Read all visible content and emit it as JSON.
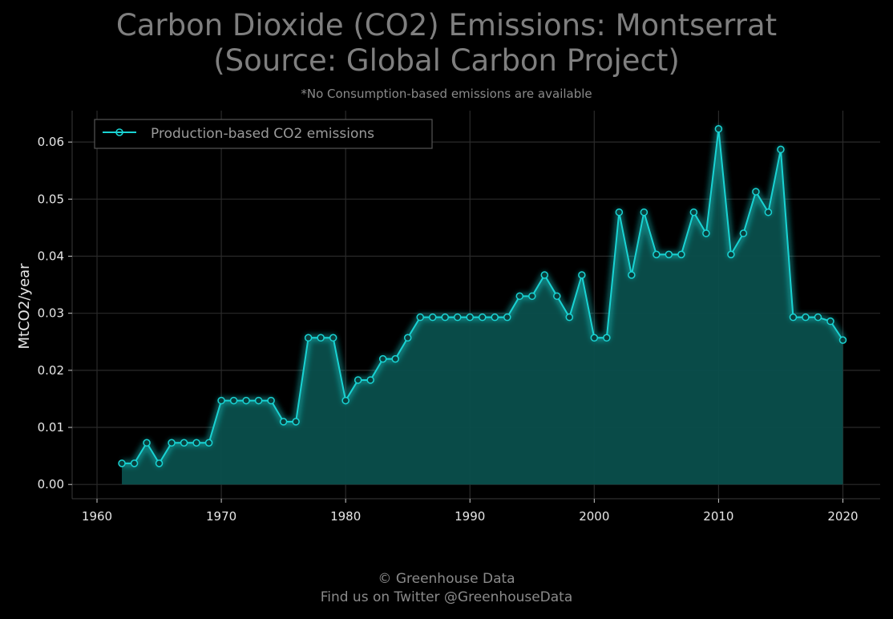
{
  "header": {
    "title_line1": "Carbon Dioxide (CO2) Emissions: Montserrat",
    "title_line2": "(Source: Global Carbon Project)",
    "subtitle": "*No Consumption-based emissions are available"
  },
  "footer": {
    "line1": "© Greenhouse Data",
    "line2": "Find us on Twitter @GreenhouseData"
  },
  "colors": {
    "background": "#000000",
    "line": "#19d3d3",
    "fill": "#0a4f4c",
    "grid": "#2a2a2a"
  },
  "chart_data": {
    "type": "area",
    "title": "Carbon Dioxide (CO2) Emissions: Montserrat (Source: Global Carbon Project)",
    "ylabel": "MtCO2/year",
    "xlabel": "",
    "xlim": [
      1958,
      2023
    ],
    "ylim": [
      -0.0025,
      0.0655
    ],
    "x_ticks": [
      1960,
      1970,
      1980,
      1990,
      2000,
      2010,
      2020
    ],
    "y_ticks": [
      0.0,
      0.01,
      0.02,
      0.03,
      0.04,
      0.05,
      0.06
    ],
    "y_tick_labels": [
      "0.00",
      "0.01",
      "0.02",
      "0.03",
      "0.04",
      "0.05",
      "0.06"
    ],
    "grid": true,
    "legend_position": "top-left",
    "series": [
      {
        "name": "Production-based CO2 emissions",
        "x": [
          1962,
          1963,
          1964,
          1965,
          1966,
          1967,
          1968,
          1969,
          1970,
          1971,
          1972,
          1973,
          1974,
          1975,
          1976,
          1977,
          1978,
          1979,
          1980,
          1981,
          1982,
          1983,
          1984,
          1985,
          1986,
          1987,
          1988,
          1989,
          1990,
          1991,
          1992,
          1993,
          1994,
          1995,
          1996,
          1997,
          1998,
          1999,
          2000,
          2001,
          2002,
          2003,
          2004,
          2005,
          2006,
          2007,
          2008,
          2009,
          2010,
          2011,
          2012,
          2013,
          2014,
          2015,
          2016,
          2017,
          2018,
          2019,
          2020
        ],
        "values": [
          0.0037,
          0.0037,
          0.0073,
          0.0037,
          0.0073,
          0.0073,
          0.0073,
          0.0073,
          0.0147,
          0.0147,
          0.0147,
          0.0147,
          0.0147,
          0.011,
          0.011,
          0.0257,
          0.0257,
          0.0257,
          0.0147,
          0.0183,
          0.0183,
          0.022,
          0.022,
          0.0257,
          0.0293,
          0.0293,
          0.0293,
          0.0293,
          0.0293,
          0.0293,
          0.0293,
          0.0293,
          0.033,
          0.033,
          0.0367,
          0.033,
          0.0293,
          0.0367,
          0.0257,
          0.0257,
          0.0477,
          0.0367,
          0.0477,
          0.0403,
          0.0403,
          0.0403,
          0.0477,
          0.044,
          0.0623,
          0.0403,
          0.044,
          0.0513,
          0.0477,
          0.0587,
          0.0293,
          0.0293,
          0.0293,
          0.0286,
          0.0253
        ]
      }
    ]
  }
}
